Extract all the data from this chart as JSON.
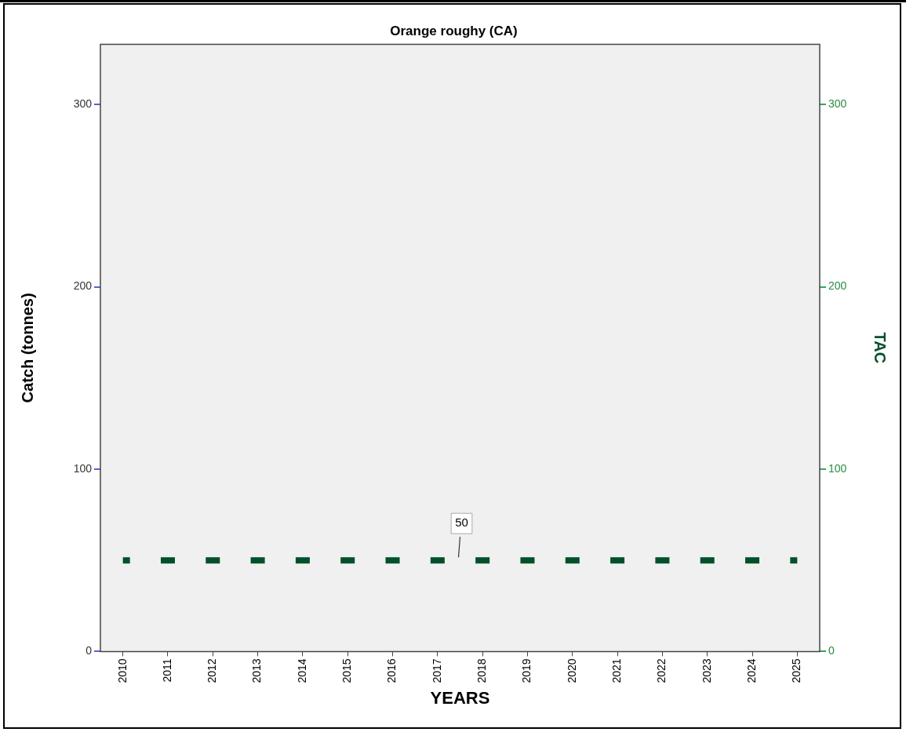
{
  "chart_data": {
    "type": "line",
    "title": "Orange roughy (CA)",
    "xlabel": "YEARS",
    "ylabel": "Catch (tonnes)",
    "y2label": "TAC",
    "categories": [
      "2010",
      "2011",
      "2012",
      "2013",
      "2014",
      "2015",
      "2016",
      "2017",
      "2018",
      "2019",
      "2020",
      "2021",
      "2022",
      "2023",
      "2024",
      "2025"
    ],
    "series": [
      {
        "color": "#00502a",
        "axis": "y2",
        "values": [
          50,
          50,
          50,
          50,
          50,
          50,
          50,
          50,
          50,
          50,
          50,
          50,
          50,
          50,
          50,
          50
        ]
      }
    ],
    "ylim": [
      0,
      333
    ],
    "yticks": [
      0,
      100,
      200,
      300
    ],
    "y2lim": [
      0,
      333
    ],
    "y2ticks": [
      0,
      100,
      200,
      300
    ],
    "line_style": "dashed",
    "marker": "none",
    "legend": false,
    "annotations": [
      {
        "text": "50",
        "y": 50
      }
    ]
  }
}
